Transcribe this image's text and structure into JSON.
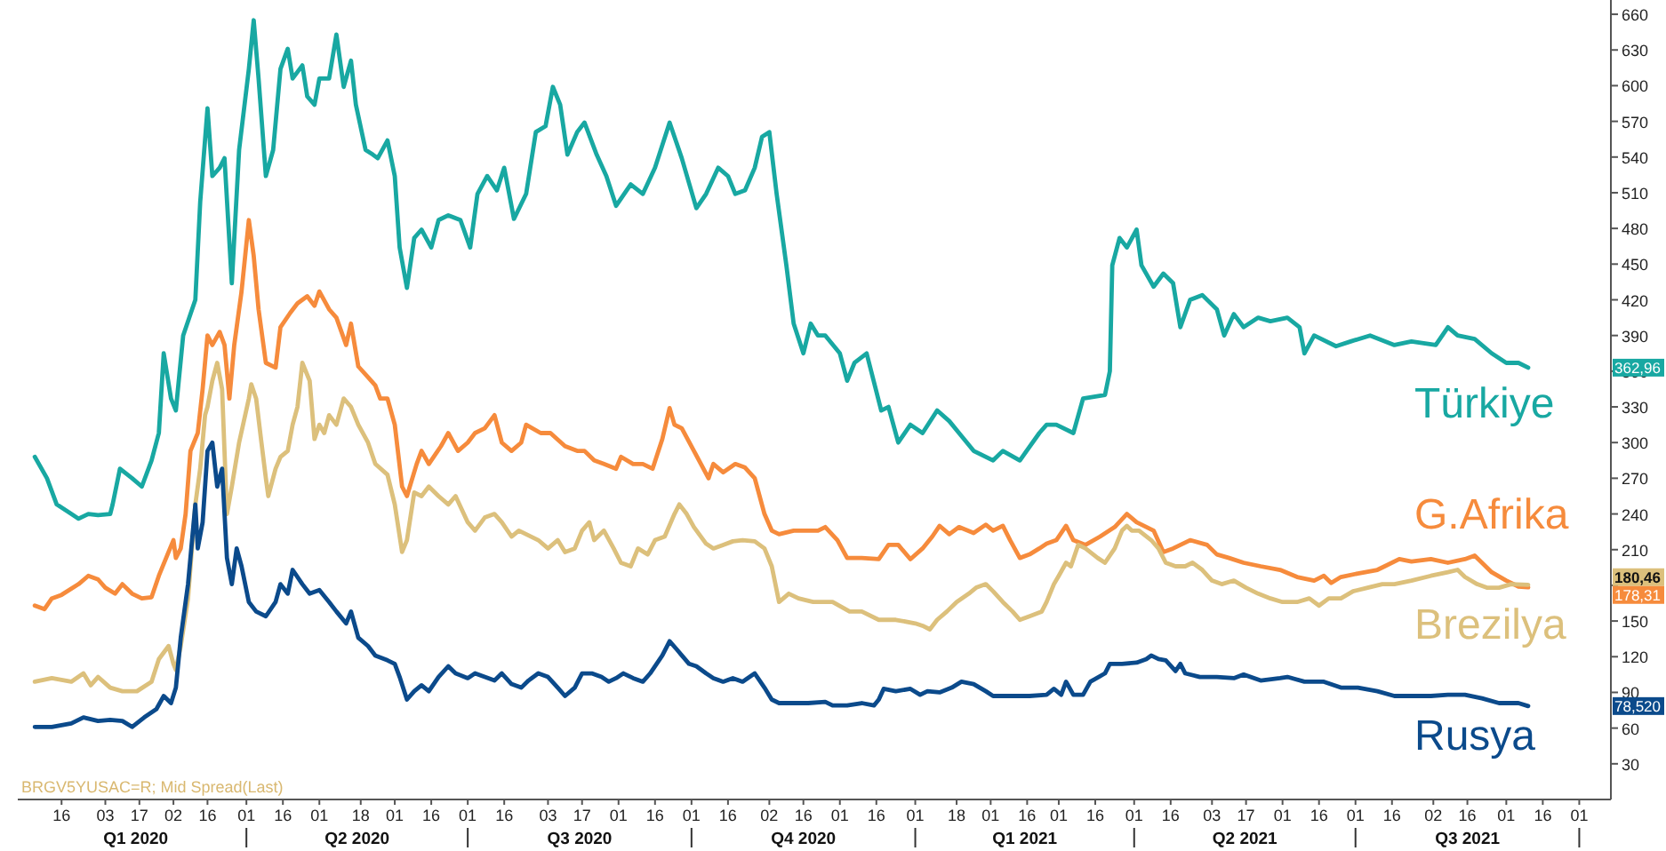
{
  "chart_data": {
    "type": "line",
    "xlim": [
      "2019-12-29",
      "2021-10-14"
    ],
    "ylim": [
      0,
      672
    ],
    "yticks": [
      30,
      60,
      90,
      120,
      150,
      {
        "value": 180,
        "label": null
      },
      210,
      240,
      270,
      300,
      330,
      360,
      390,
      420,
      450,
      480,
      510,
      540,
      570,
      600,
      630,
      660
    ],
    "xticks": [
      {
        "value": "2020-01-16",
        "label": "16"
      },
      {
        "value": "2020-02-03",
        "label": "03"
      },
      {
        "value": "2020-02-17",
        "label": "17"
      },
      {
        "value": "2020-03-02",
        "label": "02"
      },
      {
        "value": "2020-03-16",
        "label": "16"
      },
      {
        "value": "2020-04-01",
        "label": "01"
      },
      {
        "value": "2020-04-16",
        "label": "16"
      },
      {
        "value": "2020-05-01",
        "label": "01"
      },
      {
        "value": "2020-05-18",
        "label": "18"
      },
      {
        "value": "2020-06-01",
        "label": "01"
      },
      {
        "value": "2020-06-16",
        "label": "16"
      },
      {
        "value": "2020-07-01",
        "label": "01"
      },
      {
        "value": "2020-07-16",
        "label": "16"
      },
      {
        "value": "2020-08-03",
        "label": "03"
      },
      {
        "value": "2020-08-17",
        "label": "17"
      },
      {
        "value": "2020-09-01",
        "label": "01"
      },
      {
        "value": "2020-09-16",
        "label": "16"
      },
      {
        "value": "2020-10-01",
        "label": "01"
      },
      {
        "value": "2020-10-16",
        "label": "16"
      },
      {
        "value": "2020-11-02",
        "label": "02"
      },
      {
        "value": "2020-11-16",
        "label": "16"
      },
      {
        "value": "2020-12-01",
        "label": "01"
      },
      {
        "value": "2020-12-16",
        "label": "16"
      },
      {
        "value": "2021-01-01",
        "label": "01"
      },
      {
        "value": "2021-01-18",
        "label": "18"
      },
      {
        "value": "2021-02-01",
        "label": "01"
      },
      {
        "value": "2021-02-16",
        "label": "16"
      },
      {
        "value": "2021-03-01",
        "label": "01"
      },
      {
        "value": "2021-03-16",
        "label": "16"
      },
      {
        "value": "2021-04-01",
        "label": "01"
      },
      {
        "value": "2021-04-16",
        "label": "16"
      },
      {
        "value": "2021-05-03",
        "label": "03"
      },
      {
        "value": "2021-05-17",
        "label": "17"
      },
      {
        "value": "2021-06-01",
        "label": "01"
      },
      {
        "value": "2021-06-16",
        "label": "16"
      },
      {
        "value": "2021-07-01",
        "label": "01"
      },
      {
        "value": "2021-07-16",
        "label": "16"
      },
      {
        "value": "2021-08-02",
        "label": "02"
      },
      {
        "value": "2021-08-16",
        "label": "16"
      },
      {
        "value": "2021-09-01",
        "label": "01"
      },
      {
        "value": "2021-09-16",
        "label": "16"
      },
      {
        "value": "2021-10-01",
        "label": "01"
      }
    ],
    "annotations": [
      "BRGV5YUSAC=R; Mid Spread(Last)",
      "Q1 2020",
      "Q2 2020",
      "Q3 2020",
      "Q4 2020",
      "Q1 2021",
      "Q2 2021",
      "Q3 2021",
      "362,96",
      "180,46",
      "178,31",
      "78,520"
    ],
    "legend": "right",
    "series": [
      {
        "name": "Türkiye",
        "color": "#18a8a2",
        "x": [
          "2020-01-05",
          "2020-01-10",
          "2020-01-14",
          "2020-01-20",
          "2020-01-23",
          "2020-01-27",
          "2020-01-31",
          "2020-02-05",
          "2020-02-06",
          "2020-02-09",
          "2020-02-14",
          "2020-02-18",
          "2020-02-22",
          "2020-02-25",
          "2020-02-27",
          "2020-03-01",
          "2020-03-03",
          "2020-03-06",
          "2020-03-11",
          "2020-03-13",
          "2020-03-16",
          "2020-03-18",
          "2020-03-21",
          "2020-03-23",
          "2020-03-26",
          "2020-03-29",
          "2020-04-02",
          "2020-04-04",
          "2020-04-06",
          "2020-04-09",
          "2020-04-12",
          "2020-04-15",
          "2020-04-18",
          "2020-04-20",
          "2020-04-24",
          "2020-04-26",
          "2020-04-29",
          "2020-05-01",
          "2020-05-05",
          "2020-05-08",
          "2020-05-11",
          "2020-05-14",
          "2020-05-16",
          "2020-05-20",
          "2020-05-23",
          "2020-05-25",
          "2020-05-29",
          "2020-06-01",
          "2020-06-03",
          "2020-06-06",
          "2020-06-09",
          "2020-06-12",
          "2020-06-16",
          "2020-06-19",
          "2020-06-23",
          "2020-06-28",
          "2020-07-02",
          "2020-07-05",
          "2020-07-09",
          "2020-07-13",
          "2020-07-16",
          "2020-07-20",
          "2020-07-25",
          "2020-07-29",
          "2020-08-02",
          "2020-08-05",
          "2020-08-08",
          "2020-08-11",
          "2020-08-15",
          "2020-08-18",
          "2020-08-23",
          "2020-08-27",
          "2020-08-31",
          "2020-09-06",
          "2020-09-11",
          "2020-09-16",
          "2020-09-22",
          "2020-09-27",
          "2020-10-03",
          "2020-10-07",
          "2020-10-12",
          "2020-10-16",
          "2020-10-19",
          "2020-10-23",
          "2020-10-27",
          "2020-10-30",
          "2020-11-02",
          "2020-11-05",
          "2020-11-09",
          "2020-11-12",
          "2020-11-16",
          "2020-11-19",
          "2020-11-22",
          "2020-11-25",
          "2020-12-01",
          "2020-12-04",
          "2020-12-07",
          "2020-12-12",
          "2020-12-18",
          "2020-12-21",
          "2020-12-25",
          "2020-12-30",
          "2021-01-04",
          "2021-01-10",
          "2021-01-15",
          "2021-01-19",
          "2021-01-25",
          "2021-02-02",
          "2021-02-06",
          "2021-02-13",
          "2021-02-21",
          "2021-02-24",
          "2021-02-28",
          "2021-03-07",
          "2021-03-11",
          "2021-03-20",
          "2021-03-22",
          "2021-03-23",
          "2021-03-26",
          "2021-03-29",
          "2021-04-02",
          "2021-04-04",
          "2021-04-09",
          "2021-04-13",
          "2021-04-17",
          "2021-04-20",
          "2021-04-24",
          "2021-04-29",
          "2021-05-05",
          "2021-05-08",
          "2021-05-12",
          "2021-05-16",
          "2021-05-22",
          "2021-05-27",
          "2021-06-03",
          "2021-06-08",
          "2021-06-10",
          "2021-06-14",
          "2021-06-23",
          "2021-06-29",
          "2021-07-07",
          "2021-07-17",
          "2021-07-24",
          "2021-08-03",
          "2021-08-08",
          "2021-08-12",
          "2021-08-19",
          "2021-08-26",
          "2021-09-01",
          "2021-09-06",
          "2021-09-10"
        ],
        "values": [
          288,
          270,
          248,
          240,
          236,
          240,
          239,
          240,
          248,
          278,
          270,
          263,
          285,
          308,
          375,
          337,
          327,
          390,
          420,
          502,
          581,
          524,
          531,
          539,
          434,
          546,
          614,
          655,
          606,
          524,
          546,
          614,
          631,
          606,
          617,
          591,
          584,
          606,
          606,
          643,
          599,
          621,
          584,
          546,
          542,
          539,
          554,
          524,
          464,
          430,
          472,
          479,
          464,
          487,
          491,
          487,
          464,
          509,
          524,
          512,
          531,
          488,
          509,
          561,
          566,
          599,
          584,
          542,
          561,
          569,
          542,
          524,
          499,
          517,
          509,
          531,
          569,
          539,
          497,
          509,
          531,
          524,
          509,
          512,
          531,
          557,
          561,
          509,
          449,
          400,
          375,
          400,
          390,
          390,
          375,
          352,
          367,
          375,
          327,
          330,
          300,
          315,
          308,
          327,
          318,
          308,
          293,
          285,
          293,
          285,
          308,
          315,
          315,
          308,
          337,
          340,
          360,
          449,
          472,
          464,
          479,
          449,
          431,
          442,
          434,
          397,
          420,
          424,
          412,
          390,
          408,
          397,
          405,
          402,
          405,
          397,
          375,
          390,
          381,
          385,
          390,
          382,
          385,
          382,
          397,
          390,
          387,
          375,
          367,
          367,
          362.96
        ]
      },
      {
        "name": "G.Afrika",
        "color": "#f68b3c",
        "x": [
          "2020-01-05",
          "2020-01-09",
          "2020-01-12",
          "2020-01-16",
          "2020-01-23",
          "2020-01-27",
          "2020-01-31",
          "2020-02-03",
          "2020-02-07",
          "2020-02-10",
          "2020-02-14",
          "2020-02-18",
          "2020-02-22",
          "2020-02-25",
          "2020-02-29",
          "2020-03-02",
          "2020-03-03",
          "2020-03-05",
          "2020-03-07",
          "2020-03-09",
          "2020-03-12",
          "2020-03-14",
          "2020-03-16",
          "2020-03-18",
          "2020-03-21",
          "2020-03-23",
          "2020-03-25",
          "2020-03-27",
          "2020-03-30",
          "2020-04-02",
          "2020-04-04",
          "2020-04-06",
          "2020-04-09",
          "2020-04-13",
          "2020-04-15",
          "2020-04-19",
          "2020-04-22",
          "2020-04-26",
          "2020-04-29",
          "2020-05-01",
          "2020-05-05",
          "2020-05-08",
          "2020-05-12",
          "2020-05-14",
          "2020-05-17",
          "2020-05-21",
          "2020-05-24",
          "2020-05-26",
          "2020-05-29",
          "2020-06-01",
          "2020-06-04",
          "2020-06-06",
          "2020-06-10",
          "2020-06-12",
          "2020-06-15",
          "2020-06-20",
          "2020-06-23",
          "2020-06-27",
          "2020-07-01",
          "2020-07-04",
          "2020-07-08",
          "2020-07-12",
          "2020-07-15",
          "2020-07-19",
          "2020-07-23",
          "2020-07-25",
          "2020-07-31",
          "2020-08-04",
          "2020-08-10",
          "2020-08-15",
          "2020-08-18",
          "2020-08-22",
          "2020-08-26",
          "2020-08-31",
          "2020-09-02",
          "2020-09-07",
          "2020-09-11",
          "2020-09-15",
          "2020-09-19",
          "2020-09-22",
          "2020-09-24",
          "2020-09-27",
          "2020-10-02",
          "2020-10-08",
          "2020-10-10",
          "2020-10-14",
          "2020-10-19",
          "2020-10-23",
          "2020-10-27",
          "2020-10-31",
          "2020-11-03",
          "2020-11-06",
          "2020-11-12",
          "2020-11-19",
          "2020-11-22",
          "2020-11-25",
          "2020-11-30",
          "2020-12-04",
          "2020-12-10",
          "2020-12-17",
          "2020-12-21",
          "2020-12-25",
          "2020-12-30",
          "2021-01-04",
          "2021-01-08",
          "2021-01-11",
          "2021-01-15",
          "2021-01-19",
          "2021-01-25",
          "2021-01-30",
          "2021-02-02",
          "2021-02-06",
          "2021-02-09",
          "2021-02-13",
          "2021-02-17",
          "2021-02-21",
          "2021-02-24",
          "2021-02-28",
          "2021-03-04",
          "2021-03-07",
          "2021-03-12",
          "2021-03-18",
          "2021-03-24",
          "2021-03-29",
          "2021-04-02",
          "2021-04-09",
          "2021-04-13",
          "2021-04-17",
          "2021-04-24",
          "2021-05-01",
          "2021-05-05",
          "2021-05-10",
          "2021-05-16",
          "2021-05-23",
          "2021-05-31",
          "2021-06-07",
          "2021-06-14",
          "2021-06-18",
          "2021-06-21",
          "2021-06-25",
          "2021-07-02",
          "2021-07-10",
          "2021-07-13",
          "2021-07-19",
          "2021-07-24",
          "2021-08-01",
          "2021-08-08",
          "2021-08-15",
          "2021-08-19",
          "2021-08-22",
          "2021-08-26",
          "2021-09-01",
          "2021-09-06",
          "2021-09-10"
        ],
        "values": [
          163,
          160,
          169,
          172,
          181,
          188,
          185,
          178,
          173,
          181,
          173,
          169,
          170,
          188,
          208,
          218,
          203,
          211,
          240,
          293,
          308,
          345,
          390,
          382,
          393,
          382,
          337,
          382,
          427,
          487,
          457,
          412,
          367,
          363,
          397,
          409,
          417,
          423,
          415,
          427,
          412,
          405,
          382,
          400,
          364,
          355,
          348,
          337,
          337,
          315,
          263,
          255,
          282,
          293,
          282,
          297,
          308,
          293,
          300,
          308,
          312,
          323,
          300,
          293,
          300,
          315,
          308,
          308,
          297,
          293,
          293,
          285,
          282,
          278,
          288,
          282,
          282,
          278,
          303,
          329,
          315,
          312,
          293,
          270,
          282,
          275,
          282,
          279,
          270,
          240,
          226,
          223,
          226,
          226,
          226,
          229,
          218,
          203,
          203,
          202,
          214,
          214,
          202,
          211,
          221,
          230,
          223,
          229,
          224,
          231,
          226,
          230,
          218,
          203,
          206,
          211,
          215,
          218,
          230,
          218,
          214,
          221,
          229,
          240,
          233,
          226,
          208,
          211,
          218,
          214,
          206,
          203,
          199,
          196,
          193,
          187,
          184,
          188,
          182,
          187,
          190,
          193,
          196,
          202,
          200,
          202,
          199,
          202,
          205,
          199,
          191,
          184,
          179,
          178.31
        ]
      },
      {
        "name": "Brezilya",
        "color": "#dcc07c",
        "x": [
          "2020-01-05",
          "2020-01-12",
          "2020-01-20",
          "2020-01-25",
          "2020-01-28",
          "2020-01-31",
          "2020-02-05",
          "2020-02-10",
          "2020-02-16",
          "2020-02-22",
          "2020-02-25",
          "2020-02-29",
          "2020-03-02",
          "2020-03-03",
          "2020-03-05",
          "2020-03-08",
          "2020-03-11",
          "2020-03-13",
          "2020-03-15",
          "2020-03-16",
          "2020-03-18",
          "2020-03-20",
          "2020-03-22",
          "2020-03-24",
          "2020-03-26",
          "2020-03-29",
          "2020-04-02",
          "2020-04-03",
          "2020-04-05",
          "2020-04-07",
          "2020-04-09",
          "2020-04-10",
          "2020-04-13",
          "2020-04-15",
          "2020-04-18",
          "2020-04-20",
          "2020-04-22",
          "2020-04-24",
          "2020-04-27",
          "2020-04-29",
          "2020-05-01",
          "2020-05-03",
          "2020-05-05",
          "2020-05-08",
          "2020-05-11",
          "2020-05-14",
          "2020-05-17",
          "2020-05-21",
          "2020-05-24",
          "2020-05-29",
          "2020-06-01",
          "2020-06-04",
          "2020-06-06",
          "2020-06-09",
          "2020-06-12",
          "2020-06-15",
          "2020-06-19",
          "2020-06-23",
          "2020-06-26",
          "2020-07-01",
          "2020-07-04",
          "2020-07-08",
          "2020-07-12",
          "2020-07-15",
          "2020-07-19",
          "2020-07-22",
          "2020-07-25",
          "2020-07-30",
          "2020-08-03",
          "2020-08-07",
          "2020-08-10",
          "2020-08-14",
          "2020-08-17",
          "2020-08-20",
          "2020-08-22",
          "2020-08-26",
          "2020-08-30",
          "2020-09-02",
          "2020-09-06",
          "2020-09-09",
          "2020-09-13",
          "2020-09-16",
          "2020-09-20",
          "2020-09-24",
          "2020-09-26",
          "2020-09-29",
          "2020-10-02",
          "2020-10-07",
          "2020-10-10",
          "2020-10-14",
          "2020-10-18",
          "2020-10-22",
          "2020-10-27",
          "2020-10-31",
          "2020-11-03",
          "2020-11-06",
          "2020-11-10",
          "2020-11-14",
          "2020-11-20",
          "2020-11-25",
          "2020-11-28",
          "2020-12-05",
          "2020-12-10",
          "2020-12-17",
          "2020-12-21",
          "2020-12-24",
          "2021-01-01",
          "2021-01-04",
          "2021-01-07",
          "2021-01-10",
          "2021-01-14",
          "2021-01-18",
          "2021-01-23",
          "2021-01-26",
          "2021-01-30",
          "2021-02-02",
          "2021-02-06",
          "2021-02-10",
          "2021-02-13",
          "2021-02-17",
          "2021-02-22",
          "2021-02-24",
          "2021-02-27",
          "2021-03-01",
          "2021-03-04",
          "2021-03-06",
          "2021-03-09",
          "2021-03-12",
          "2021-03-17",
          "2021-03-20",
          "2021-03-24",
          "2021-03-27",
          "2021-03-29",
          "2021-03-31",
          "2021-04-03",
          "2021-04-08",
          "2021-04-11",
          "2021-04-14",
          "2021-04-18",
          "2021-04-22",
          "2021-04-25",
          "2021-04-29",
          "2021-05-03",
          "2021-05-07",
          "2021-05-12",
          "2021-05-17",
          "2021-05-22",
          "2021-05-27",
          "2021-06-01",
          "2021-06-07",
          "2021-06-12",
          "2021-06-16",
          "2021-06-20",
          "2021-06-25",
          "2021-06-30",
          "2021-07-06",
          "2021-07-12",
          "2021-07-17",
          "2021-07-24",
          "2021-08-01",
          "2021-08-08",
          "2021-08-12",
          "2021-08-15",
          "2021-08-20",
          "2021-08-24",
          "2021-08-29",
          "2021-09-03",
          "2021-09-10"
        ],
        "values": [
          99,
          102,
          99,
          106,
          96,
          103,
          94,
          91,
          91,
          99,
          118,
          129,
          114,
          109,
          129,
          169,
          248,
          278,
          323,
          330,
          352,
          367,
          345,
          240,
          263,
          300,
          337,
          349,
          337,
          303,
          270,
          255,
          278,
          288,
          293,
          315,
          330,
          367,
          352,
          303,
          315,
          308,
          323,
          315,
          337,
          330,
          315,
          300,
          282,
          273,
          248,
          208,
          218,
          258,
          255,
          263,
          255,
          248,
          255,
          233,
          226,
          237,
          240,
          233,
          221,
          226,
          223,
          218,
          211,
          218,
          208,
          211,
          226,
          233,
          218,
          226,
          211,
          199,
          196,
          211,
          206,
          218,
          221,
          240,
          248,
          240,
          229,
          215,
          211,
          214,
          217,
          218,
          217,
          211,
          196,
          166,
          173,
          169,
          166,
          166,
          166,
          158,
          158,
          151,
          151,
          151,
          148,
          146,
          143,
          151,
          158,
          166,
          173,
          178,
          181,
          175,
          166,
          158,
          151,
          154,
          158,
          166,
          181,
          188,
          199,
          196,
          214,
          211,
          203,
          199,
          211,
          226,
          230,
          226,
          226,
          218,
          211,
          199,
          196,
          196,
          199,
          193,
          184,
          181,
          184,
          178,
          173,
          169,
          166,
          166,
          169,
          163,
          169,
          169,
          175,
          178,
          181,
          181,
          184,
          188,
          191,
          193,
          187,
          181,
          178,
          178,
          181,
          180.46
        ]
      },
      {
        "name": "Rusya",
        "color": "#0b4a8b",
        "x": [
          "2020-01-05",
          "2020-01-12",
          "2020-01-20",
          "2020-01-25",
          "2020-01-31",
          "2020-02-05",
          "2020-02-10",
          "2020-02-14",
          "2020-02-19",
          "2020-02-24",
          "2020-02-27",
          "2020-03-01",
          "2020-03-03",
          "2020-03-05",
          "2020-03-08",
          "2020-03-11",
          "2020-03-12",
          "2020-03-14",
          "2020-03-16",
          "2020-03-18",
          "2020-03-20",
          "2020-03-22",
          "2020-03-24",
          "2020-03-26",
          "2020-03-28",
          "2020-03-30",
          "2020-04-02",
          "2020-04-05",
          "2020-04-09",
          "2020-04-13",
          "2020-04-15",
          "2020-04-18",
          "2020-04-20",
          "2020-04-24",
          "2020-04-27",
          "2020-05-01",
          "2020-05-05",
          "2020-05-08",
          "2020-05-12",
          "2020-05-14",
          "2020-05-17",
          "2020-05-21",
          "2020-05-24",
          "2020-05-29",
          "2020-06-01",
          "2020-06-03",
          "2020-06-06",
          "2020-06-09",
          "2020-06-12",
          "2020-06-15",
          "2020-06-19",
          "2020-06-23",
          "2020-06-26",
          "2020-07-01",
          "2020-07-04",
          "2020-07-08",
          "2020-07-12",
          "2020-07-15",
          "2020-07-19",
          "2020-07-23",
          "2020-07-26",
          "2020-07-30",
          "2020-08-03",
          "2020-08-07",
          "2020-08-10",
          "2020-08-14",
          "2020-08-17",
          "2020-08-21",
          "2020-08-25",
          "2020-08-28",
          "2020-08-31",
          "2020-09-03",
          "2020-09-07",
          "2020-09-11",
          "2020-09-14",
          "2020-09-19",
          "2020-09-22",
          "2020-09-25",
          "2020-09-30",
          "2020-10-03",
          "2020-10-07",
          "2020-10-10",
          "2020-10-14",
          "2020-10-18",
          "2020-10-22",
          "2020-10-27",
          "2020-10-31",
          "2020-11-03",
          "2020-11-06",
          "2020-11-10",
          "2020-11-18",
          "2020-11-25",
          "2020-11-28",
          "2020-12-04",
          "2020-12-10",
          "2020-12-15",
          "2020-12-17",
          "2020-12-19",
          "2020-12-24",
          "2020-12-30",
          "2021-01-03",
          "2021-01-06",
          "2021-01-11",
          "2021-01-16",
          "2021-01-20",
          "2021-01-25",
          "2021-01-30",
          "2021-02-02",
          "2021-02-06",
          "2021-02-10",
          "2021-02-17",
          "2021-02-24",
          "2021-02-27",
          "2021-03-02",
          "2021-03-04",
          "2021-03-07",
          "2021-03-11",
          "2021-03-14",
          "2021-03-20",
          "2021-03-22",
          "2021-03-27",
          "2021-04-02",
          "2021-04-06",
          "2021-04-08",
          "2021-04-11",
          "2021-04-14",
          "2021-04-18",
          "2021-04-20",
          "2021-04-22",
          "2021-04-28",
          "2021-05-05",
          "2021-05-12",
          "2021-05-16",
          "2021-05-23",
          "2021-05-31",
          "2021-06-03",
          "2021-06-10",
          "2021-06-18",
          "2021-06-25",
          "2021-07-02",
          "2021-07-10",
          "2021-07-17",
          "2021-07-24",
          "2021-08-01",
          "2021-08-08",
          "2021-08-15",
          "2021-08-22",
          "2021-08-29",
          "2021-09-06",
          "2021-09-10"
        ],
        "values": [
          61,
          61,
          64,
          69,
          66,
          67,
          66,
          61,
          69,
          76,
          87,
          81,
          94,
          136,
          181,
          248,
          211,
          233,
          293,
          300,
          263,
          278,
          203,
          181,
          211,
          196,
          166,
          158,
          154,
          166,
          181,
          173,
          193,
          181,
          173,
          176,
          166,
          158,
          148,
          158,
          136,
          129,
          121,
          117,
          114,
          103,
          84,
          91,
          96,
          91,
          103,
          112,
          106,
          102,
          106,
          103,
          100,
          106,
          97,
          94,
          100,
          106,
          103,
          94,
          87,
          94,
          106,
          106,
          103,
          99,
          102,
          106,
          102,
          99,
          106,
          121,
          133,
          126,
          114,
          112,
          106,
          102,
          99,
          102,
          99,
          106,
          94,
          84,
          81,
          81,
          81,
          82,
          79,
          79,
          81,
          79,
          84,
          93,
          91,
          93,
          88,
          91,
          90,
          94,
          99,
          97,
          91,
          87,
          87,
          87,
          87,
          88,
          93,
          88,
          99,
          88,
          88,
          99,
          106,
          114,
          114,
          115,
          118,
          121,
          118,
          117,
          108,
          114,
          106,
          103,
          103,
          102,
          105,
          100,
          102,
          103,
          99,
          99,
          94,
          94,
          91,
          87,
          87,
          87,
          88,
          88,
          85,
          81,
          81,
          78.52
        ]
      }
    ]
  }
}
